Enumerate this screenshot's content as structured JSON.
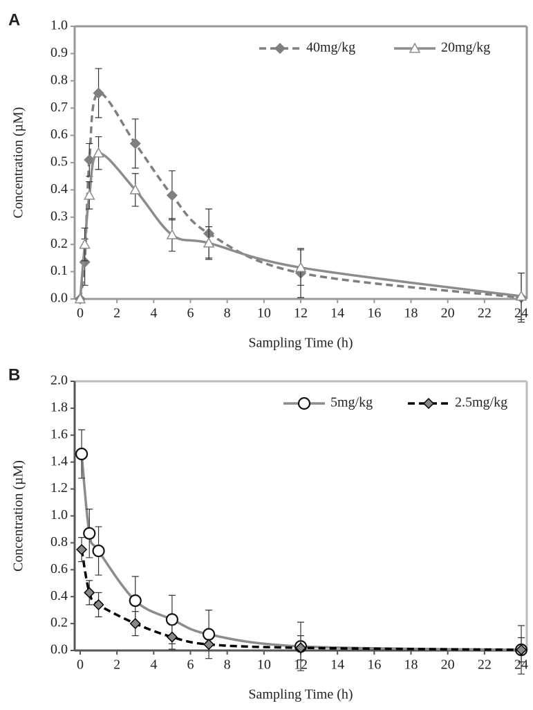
{
  "chart_data": [
    {
      "type": "line",
      "panel_label": "A",
      "x_label": "Sampling Time (h)",
      "y_label": "Concentration (µM)",
      "x": [
        0,
        0.25,
        0.5,
        1,
        3,
        5,
        7,
        12,
        24
      ],
      "series": [
        {
          "name": "40mg/kg",
          "color": "#7f7f7f",
          "dash": true,
          "marker": "diamond",
          "values": [
            0,
            0.135,
            0.51,
            0.755,
            0.57,
            0.38,
            0.24,
            0.095,
            0.005
          ],
          "errors": [
            0,
            0.085,
            0.06,
            0.09,
            0.09,
            0.09,
            0.09,
            0.09,
            0.09
          ]
        },
        {
          "name": "20mg/kg",
          "color": "#8c8c8c",
          "dash": false,
          "marker": "triangle",
          "values": [
            0,
            0.2,
            0.38,
            0.535,
            0.4,
            0.235,
            0.205,
            0.115,
            0.01
          ],
          "errors": [
            0,
            0.06,
            0.05,
            0.06,
            0.06,
            0.06,
            0.06,
            0.065,
            0.085
          ]
        }
      ],
      "xlim": [
        -0.3,
        24.3
      ],
      "xticks": [
        0,
        2,
        4,
        6,
        8,
        10,
        12,
        14,
        16,
        18,
        20,
        22,
        24
      ],
      "ylim": [
        0,
        1
      ],
      "yticks": [
        {
          "value": 0,
          "label": "0.0"
        },
        {
          "value": 0.1,
          "label": "0.1"
        },
        {
          "value": 0.2,
          "label": "0.2"
        },
        {
          "value": 0.3,
          "label": "0.3"
        },
        {
          "value": 0.4,
          "label": "0.4"
        },
        {
          "value": 0.5,
          "label": "0.5"
        },
        {
          "value": 0.6,
          "label": "0.6"
        },
        {
          "value": 0.7,
          "label": "0.7"
        },
        {
          "value": 0.8,
          "label": "0.8"
        },
        {
          "value": 0.9,
          "label": "0.9"
        },
        {
          "value": 1,
          "label": "1.0"
        }
      ],
      "legend": "upper right"
    },
    {
      "type": "line",
      "panel_label": "B",
      "x_label": "Sampling Time (h)",
      "y_label": "Concentration (µM)",
      "x": [
        0.08,
        0.5,
        1,
        3,
        5,
        7,
        12,
        24
      ],
      "series": [
        {
          "name": "5mg/kg",
          "color": "#8c8c8c",
          "dash": false,
          "marker": "circle",
          "values": [
            1.46,
            0.87,
            0.74,
            0.37,
            0.23,
            0.12,
            0.03,
            0.005
          ],
          "errors": [
            0.18,
            0.18,
            0.18,
            0.18,
            0.18,
            0.18,
            0.18,
            0.18
          ]
        },
        {
          "name": "2.5mg/kg",
          "color": "#000000",
          "dash": true,
          "marker": "diamond",
          "values": [
            0.75,
            0.43,
            0.34,
            0.2,
            0.1,
            0.045,
            0.02,
            0.005
          ],
          "errors": [
            0.09,
            0.09,
            0.09,
            0.09,
            0.09,
            0.0,
            0.09,
            0.09
          ]
        }
      ],
      "xlim": [
        -0.3,
        24.3
      ],
      "xticks": [
        0,
        2,
        4,
        6,
        8,
        10,
        12,
        14,
        16,
        18,
        20,
        22,
        24
      ],
      "ylim": [
        0,
        2
      ],
      "yticks": [
        {
          "value": 0,
          "label": "0.0"
        },
        {
          "value": 0.2,
          "label": "0.2"
        },
        {
          "value": 0.4,
          "label": "0.4"
        },
        {
          "value": 0.6,
          "label": "0.6"
        },
        {
          "value": 0.8,
          "label": "0.8"
        },
        {
          "value": 1,
          "label": "1.0"
        },
        {
          "value": 1.2,
          "label": "1.2"
        },
        {
          "value": 1.4,
          "label": "1.4"
        },
        {
          "value": 1.6,
          "label": "1.6"
        },
        {
          "value": 1.8,
          "label": "1.8"
        },
        {
          "value": 2,
          "label": "2.0"
        }
      ],
      "legend": "upper right"
    }
  ]
}
